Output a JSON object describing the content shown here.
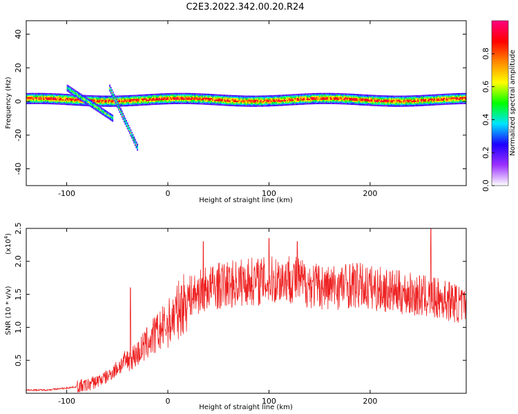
{
  "title": "C2E3.2022.342.00.20.R24",
  "chart_data": [
    {
      "type": "heatmap",
      "xlabel": "Height of straight line (km)",
      "ylabel": "Frequency (Hz)",
      "xlim": [
        -140,
        295
      ],
      "ylim": [
        -50,
        48
      ],
      "x_ticks": [
        -100,
        0,
        100,
        200
      ],
      "y_ticks": [
        -40,
        -20,
        0,
        20,
        40
      ],
      "x_tick_labels": [
        "-100",
        "0",
        "100",
        "200"
      ],
      "y_tick_labels": [
        "-40",
        "-20",
        "0",
        "20",
        "40"
      ],
      "colorbar": {
        "label": "Normalized spectral amplitude",
        "range": [
          0,
          1
        ],
        "ticks": [
          0.0,
          0.2,
          0.4,
          0.6,
          0.8
        ],
        "tick_labels": [
          "0.0",
          "0.2",
          "0.4",
          "0.6",
          "0.8"
        ],
        "colors": [
          "#ffffff",
          "#9b30ff",
          "#1e00ff",
          "#00e5ff",
          "#00ff00",
          "#ffff00",
          "#ff8800",
          "#ff0000",
          "#ff007f"
        ]
      },
      "features": [
        {
          "name": "main trace",
          "x_range": [
            -140,
            295
          ],
          "frequency": 1,
          "peak_amplitude": 0.95
        },
        {
          "name": "descending branch",
          "x_range": [
            -100,
            -55
          ],
          "frequency_range": [
            8,
            -10
          ],
          "peak_amplitude": 0.6
        },
        {
          "name": "descending branch",
          "x_range": [
            -58,
            -30
          ],
          "frequency_range": [
            8,
            -28
          ],
          "peak_amplitude": 0.6
        }
      ]
    },
    {
      "type": "line",
      "xlabel": "Height of straight line (km)",
      "ylabel": "SNR (10 * v/v)",
      "y_multiplier": "(x10",
      "y_multiplier_exp": "4",
      "y_multiplier_close": ")",
      "xlim": [
        -140,
        295
      ],
      "ylim": [
        0,
        2.5
      ],
      "x_ticks": [
        -100,
        0,
        100,
        200
      ],
      "y_ticks": [
        0.5,
        1.0,
        1.5,
        2.0,
        2.5
      ],
      "x_tick_labels": [
        "-100",
        "0",
        "100",
        "200"
      ],
      "y_tick_labels": [
        "0.5",
        "1.0",
        "1.5",
        "2.0",
        "2.5"
      ],
      "series": [
        {
          "color": "#ee2222",
          "envelope": {
            "x": [
              -140,
              -120,
              -100,
              -80,
              -60,
              -45,
              -30,
              -15,
              0,
              10,
              20,
              40,
              60,
              80,
              100,
              120,
              140,
              160,
              180,
              200,
              220,
              240,
              260,
              280,
              295
            ],
            "y": [
              0.05,
              0.05,
              0.08,
              0.12,
              0.25,
              0.45,
              0.6,
              0.85,
              1.05,
              1.25,
              1.45,
              1.6,
              1.65,
              1.7,
              1.7,
              1.75,
              1.65,
              1.6,
              1.65,
              1.6,
              1.55,
              1.5,
              1.45,
              1.4,
              1.3
            ]
          },
          "spikes": [
            {
              "x": -37,
              "y": 1.6
            },
            {
              "x": 35,
              "y": 2.3
            },
            {
              "x": 100,
              "y": 2.35
            },
            {
              "x": 128,
              "y": 2.3
            },
            {
              "x": 260,
              "y": 2.5
            }
          ]
        }
      ]
    }
  ]
}
